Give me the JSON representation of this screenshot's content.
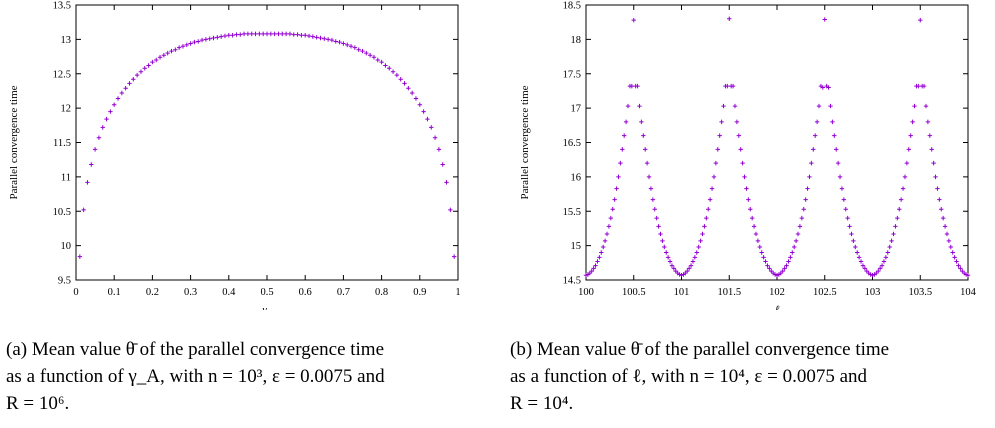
{
  "chart_data": [
    {
      "type": "scatter",
      "title": "",
      "xlabel": "γ_A",
      "ylabel": "Parallel convergence time",
      "xlim": [
        0,
        1
      ],
      "ylim": [
        9.5,
        13.5
      ],
      "xticks": [
        "0",
        "0.1",
        "0.2",
        "0.3",
        "0.4",
        "0.5",
        "0.6",
        "0.7",
        "0.8",
        "0.9",
        "1"
      ],
      "yticks": [
        "9.5",
        "10",
        "10.5",
        "11",
        "11.5",
        "12",
        "12.5",
        "13",
        "13.5"
      ],
      "grid": false,
      "legend": "none",
      "marker_color": "#9400d3",
      "series": [
        {
          "x": [
            0.01,
            0.02,
            0.03,
            0.04,
            0.05,
            0.06,
            0.07,
            0.08,
            0.09,
            0.1,
            0.11,
            0.12,
            0.13,
            0.14,
            0.15,
            0.16,
            0.17,
            0.18,
            0.19,
            0.2,
            0.21,
            0.22,
            0.23,
            0.24,
            0.25,
            0.26,
            0.27,
            0.28,
            0.29,
            0.3,
            0.31,
            0.32,
            0.33,
            0.34,
            0.35,
            0.36,
            0.37,
            0.38,
            0.39,
            0.4,
            0.41,
            0.42,
            0.43,
            0.44,
            0.45,
            0.46,
            0.47,
            0.48,
            0.49,
            0.5,
            0.51,
            0.52,
            0.53,
            0.54,
            0.55,
            0.56,
            0.57,
            0.58,
            0.59,
            0.6,
            0.61,
            0.62,
            0.63,
            0.64,
            0.65,
            0.66,
            0.67,
            0.68,
            0.69,
            0.7,
            0.71,
            0.72,
            0.73,
            0.74,
            0.75,
            0.76,
            0.77,
            0.78,
            0.79,
            0.8,
            0.81,
            0.82,
            0.83,
            0.84,
            0.85,
            0.86,
            0.87,
            0.88,
            0.89,
            0.9,
            0.91,
            0.92,
            0.93,
            0.94,
            0.95,
            0.96,
            0.97,
            0.98,
            0.99
          ],
          "y": [
            9.84,
            10.52,
            10.92,
            11.18,
            11.4,
            11.57,
            11.72,
            11.84,
            11.95,
            12.05,
            12.14,
            12.22,
            12.29,
            12.36,
            12.42,
            12.48,
            12.53,
            12.58,
            12.62,
            12.67,
            12.7,
            12.74,
            12.77,
            12.8,
            12.83,
            12.85,
            12.88,
            12.9,
            12.92,
            12.94,
            12.96,
            12.97,
            12.99,
            13.0,
            13.01,
            13.02,
            13.03,
            13.04,
            13.05,
            13.06,
            13.06,
            13.07,
            13.07,
            13.08,
            13.08,
            13.08,
            13.08,
            13.08,
            13.08,
            13.08,
            13.08,
            13.08,
            13.08,
            13.08,
            13.08,
            13.08,
            13.07,
            13.07,
            13.06,
            13.06,
            13.05,
            13.04,
            13.03,
            13.02,
            13.01,
            13.0,
            12.99,
            12.97,
            12.96,
            12.94,
            12.92,
            12.9,
            12.88,
            12.85,
            12.83,
            12.8,
            12.77,
            12.74,
            12.7,
            12.67,
            12.62,
            12.58,
            12.53,
            12.48,
            12.42,
            12.36,
            12.29,
            12.22,
            12.14,
            12.05,
            11.95,
            11.84,
            11.72,
            11.57,
            11.4,
            11.18,
            10.92,
            10.52,
            9.84
          ]
        }
      ]
    },
    {
      "type": "scatter",
      "title": "",
      "xlabel": "ℓ",
      "ylabel": "Parallel convergence time",
      "xlim": [
        100,
        104
      ],
      "ylim": [
        14.5,
        18.5
      ],
      "xticks": [
        "100",
        "100.5",
        "101",
        "101.5",
        "102",
        "102.5",
        "103",
        "103.5",
        "104"
      ],
      "yticks": [
        "14.5",
        "15",
        "15.5",
        "16",
        "16.5",
        "17",
        "17.5",
        "18",
        "18.5"
      ],
      "grid": false,
      "legend": "none",
      "marker_color": "#9400d3",
      "series": [
        {
          "x": [
            100.0,
            100.02,
            100.04,
            100.06,
            100.08,
            100.1,
            100.12,
            100.14,
            100.16,
            100.18,
            100.2,
            100.22,
            100.24,
            100.26,
            100.28,
            100.3,
            100.32,
            100.34,
            100.36,
            100.38,
            100.4,
            100.42,
            100.44,
            100.46,
            100.48,
            100.5,
            100.52,
            100.54,
            100.56,
            100.58,
            100.6,
            100.62,
            100.64,
            100.66,
            100.68,
            100.7,
            100.72,
            100.74,
            100.76,
            100.78,
            100.8,
            100.82,
            100.84,
            100.86,
            100.88,
            100.9,
            100.92,
            100.94,
            100.96,
            100.98,
            101.0,
            101.02,
            101.04,
            101.06,
            101.08,
            101.1,
            101.12,
            101.14,
            101.16,
            101.18,
            101.2,
            101.22,
            101.24,
            101.26,
            101.28,
            101.3,
            101.32,
            101.34,
            101.36,
            101.38,
            101.4,
            101.42,
            101.44,
            101.46,
            101.48,
            101.5,
            101.52,
            101.54,
            101.56,
            101.58,
            101.6,
            101.62,
            101.64,
            101.66,
            101.68,
            101.7,
            101.72,
            101.74,
            101.76,
            101.78,
            101.8,
            101.82,
            101.84,
            101.86,
            101.88,
            101.9,
            101.92,
            101.94,
            101.96,
            101.98,
            102.0,
            102.02,
            102.04,
            102.06,
            102.08,
            102.1,
            102.12,
            102.14,
            102.16,
            102.18,
            102.2,
            102.22,
            102.24,
            102.26,
            102.28,
            102.3,
            102.32,
            102.34,
            102.36,
            102.38,
            102.4,
            102.42,
            102.44,
            102.46,
            102.48,
            102.5,
            102.52,
            102.54,
            102.56,
            102.58,
            102.6,
            102.62,
            102.64,
            102.66,
            102.68,
            102.7,
            102.72,
            102.74,
            102.76,
            102.78,
            102.8,
            102.82,
            102.84,
            102.86,
            102.88,
            102.9,
            102.92,
            102.94,
            102.96,
            102.98,
            103.0,
            103.02,
            103.04,
            103.06,
            103.08,
            103.1,
            103.12,
            103.14,
            103.16,
            103.18,
            103.2,
            103.22,
            103.24,
            103.26,
            103.28,
            103.3,
            103.32,
            103.34,
            103.36,
            103.38,
            103.4,
            103.42,
            103.44,
            103.46,
            103.48,
            103.5,
            103.52,
            103.54,
            103.56,
            103.58,
            103.6,
            103.62,
            103.64,
            103.66,
            103.68,
            103.7,
            103.72,
            103.74,
            103.76,
            103.78,
            103.8,
            103.82,
            103.84,
            103.86,
            103.88,
            103.9,
            103.92,
            103.94,
            103.96,
            103.98,
            104.0
          ],
          "y": [
            14.57,
            14.58,
            14.6,
            14.63,
            14.67,
            14.71,
            14.77,
            14.83,
            14.9,
            14.98,
            15.07,
            15.17,
            15.28,
            15.4,
            15.53,
            15.67,
            15.83,
            16.0,
            16.2,
            16.4,
            16.6,
            16.8,
            17.03,
            17.32,
            17.32,
            18.28,
            17.32,
            17.32,
            17.03,
            16.8,
            16.6,
            16.4,
            16.2,
            16.0,
            15.83,
            15.67,
            15.53,
            15.4,
            15.28,
            15.17,
            15.07,
            14.98,
            14.9,
            14.83,
            14.77,
            14.71,
            14.67,
            14.63,
            14.6,
            14.58,
            14.57,
            14.58,
            14.6,
            14.63,
            14.67,
            14.71,
            14.77,
            14.83,
            14.9,
            14.98,
            15.07,
            15.17,
            15.28,
            15.4,
            15.53,
            15.67,
            15.83,
            16.0,
            16.2,
            16.4,
            16.6,
            16.8,
            17.03,
            17.32,
            17.32,
            18.3,
            17.32,
            17.32,
            17.03,
            16.8,
            16.6,
            16.4,
            16.2,
            16.0,
            15.83,
            15.67,
            15.53,
            15.4,
            15.28,
            15.17,
            15.07,
            14.98,
            14.9,
            14.83,
            14.77,
            14.71,
            14.67,
            14.63,
            14.6,
            14.58,
            14.57,
            14.58,
            14.6,
            14.63,
            14.67,
            14.71,
            14.77,
            14.83,
            14.9,
            14.98,
            15.07,
            15.17,
            15.28,
            15.4,
            15.53,
            15.67,
            15.83,
            16.0,
            16.2,
            16.4,
            16.6,
            16.8,
            17.03,
            17.32,
            17.3,
            18.29,
            17.32,
            17.3,
            17.03,
            16.8,
            16.6,
            16.4,
            16.2,
            16.0,
            15.83,
            15.67,
            15.53,
            15.4,
            15.28,
            15.17,
            15.07,
            14.98,
            14.9,
            14.83,
            14.77,
            14.71,
            14.67,
            14.63,
            14.6,
            14.58,
            14.57,
            14.58,
            14.6,
            14.63,
            14.67,
            14.71,
            14.77,
            14.83,
            14.9,
            14.98,
            15.07,
            15.17,
            15.28,
            15.4,
            15.53,
            15.67,
            15.83,
            16.0,
            16.2,
            16.4,
            16.6,
            16.8,
            17.03,
            17.32,
            17.32,
            18.28,
            17.32,
            17.32,
            17.03,
            16.8,
            16.6,
            16.4,
            16.2,
            16.0,
            15.83,
            15.67,
            15.53,
            15.4,
            15.28,
            15.17,
            15.07,
            14.98,
            14.9,
            14.83,
            14.77,
            14.71,
            14.67,
            14.63,
            14.6,
            14.58,
            14.57
          ]
        }
      ]
    }
  ],
  "captions": {
    "a": {
      "label": "(a)",
      "line1": "Mean value θ̄ of the parallel convergence time",
      "line2": "as a function of γ_A, with n = 10³, ε = 0.0075 and",
      "line3": "R = 10⁶."
    },
    "b": {
      "label": "(b)",
      "line1": "Mean value θ̄ of the parallel convergence time",
      "line2": "as a function of ℓ, with n = 10⁴, ε = 0.0075 and",
      "line3": "R = 10⁴."
    }
  }
}
